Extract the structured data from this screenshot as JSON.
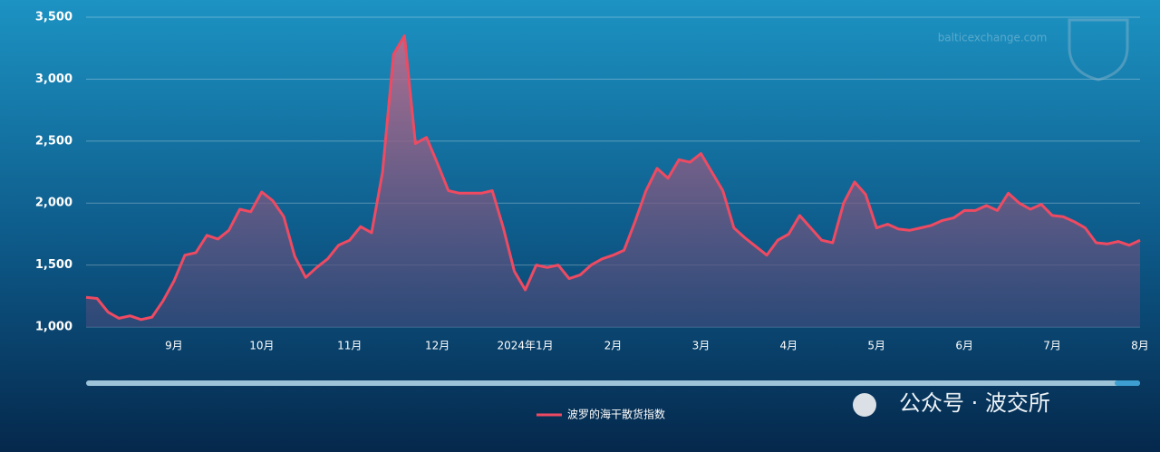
{
  "chart_data": {
    "type": "line",
    "series": [
      {
        "name": "波罗的海干散货指数",
        "color": "#ef4a62",
        "values": [
          1240,
          1230,
          1120,
          1070,
          1090,
          1060,
          1080,
          1210,
          1370,
          1580,
          1600,
          1740,
          1710,
          1780,
          1950,
          1930,
          2090,
          2020,
          1890,
          1570,
          1400,
          1480,
          1550,
          1660,
          1700,
          1810,
          1760,
          2250,
          3200,
          3350,
          2480,
          2530,
          2320,
          2100,
          2080,
          2080,
          2080,
          2100,
          1800,
          1450,
          1300,
          1500,
          1480,
          1500,
          1390,
          1420,
          1500,
          1550,
          1580,
          1620,
          1850,
          2100,
          2280,
          2200,
          2350,
          2330,
          2400,
          2250,
          2100,
          1800,
          1720,
          1650,
          1580,
          1700,
          1750,
          1900,
          1800,
          1700,
          1680,
          2000,
          2170,
          2070,
          1800,
          1830,
          1790,
          1780,
          1800,
          1820,
          1860,
          1880,
          1940,
          1940,
          1980,
          1940,
          2080,
          2000,
          1950,
          1990,
          1900,
          1890,
          1850,
          1800,
          1680,
          1670,
          1690,
          1660,
          1700
        ]
      }
    ],
    "categories": [
      null,
      null,
      null,
      null,
      null,
      null,
      null,
      null,
      "9月",
      null,
      null,
      null,
      null,
      null,
      null,
      null,
      "10月",
      null,
      null,
      null,
      null,
      null,
      null,
      null,
      "11月",
      null,
      null,
      null,
      null,
      null,
      null,
      null,
      "12月",
      null,
      null,
      null,
      null,
      null,
      null,
      null,
      "2024年1月",
      null,
      null,
      null,
      null,
      null,
      null,
      null,
      "2月",
      null,
      null,
      null,
      null,
      null,
      null,
      null,
      "3月",
      null,
      null,
      null,
      null,
      null,
      null,
      null,
      "4月",
      null,
      null,
      null,
      null,
      null,
      null,
      null,
      "5月",
      null,
      null,
      null,
      null,
      null,
      null,
      null,
      "6月",
      null,
      null,
      null,
      null,
      null,
      null,
      null,
      "7月",
      null,
      null,
      null,
      null,
      null,
      null,
      null,
      "8月"
    ],
    "ylim": [
      1000,
      3500
    ],
    "yticks": [
      {
        "value": 1000,
        "label": "1,000"
      },
      {
        "value": 1500,
        "label": "1,500"
      },
      {
        "value": 2000,
        "label": "2,000"
      },
      {
        "value": 2500,
        "label": "2,500"
      },
      {
        "value": 3000,
        "label": "3,000"
      },
      {
        "value": 3500,
        "label": "3,500"
      }
    ],
    "grid": true,
    "legend": "bottom",
    "watermark": "balticexchange.com",
    "source": "公众号 · 波交所"
  }
}
